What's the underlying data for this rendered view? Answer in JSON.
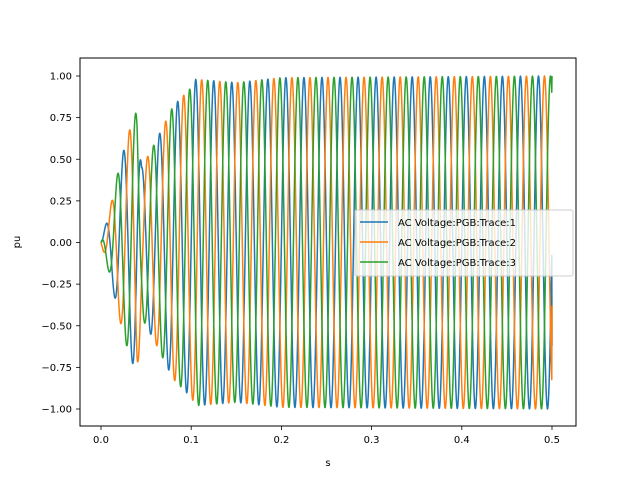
{
  "chart_data": {
    "type": "line",
    "title": "",
    "xlabel": "s",
    "ylabel": "pu",
    "xlim": [
      -0.025,
      0.525
    ],
    "ylim": [
      -1.1,
      1.1
    ],
    "grid": false,
    "legend_position": "center right",
    "x_ticks": [
      0.0,
      0.1,
      0.2,
      0.3,
      0.4,
      0.5
    ],
    "x_tick_labels": [
      "0.0",
      "0.1",
      "0.2",
      "0.3",
      "0.4",
      "0.5"
    ],
    "y_ticks": [
      1.0,
      0.75,
      0.5,
      0.25,
      0.0,
      -0.25,
      -0.5,
      -0.75,
      -1.0
    ],
    "y_tick_labels": [
      "1.00",
      "0.75",
      "0.50",
      "0.25",
      "0.00",
      "−0.25",
      "−0.50",
      "−0.75",
      "−1.00"
    ],
    "signal": {
      "frequency_hz": 50,
      "t_start": 0.0,
      "t_end": 0.5,
      "steady_state_amplitude": 1.0,
      "envelope_points": [
        [
          0.0,
          0.0
        ],
        [
          0.01,
          0.2
        ],
        [
          0.02,
          0.45
        ],
        [
          0.03,
          0.65
        ],
        [
          0.04,
          0.8
        ],
        [
          0.045,
          0.45
        ],
        [
          0.06,
          0.6
        ],
        [
          0.08,
          0.82
        ],
        [
          0.1,
          0.93
        ],
        [
          0.105,
          0.98
        ],
        [
          0.15,
          0.96
        ],
        [
          0.2,
          0.99
        ],
        [
          0.5,
          1.0
        ]
      ]
    },
    "series": [
      {
        "name": "AC Voltage:PGB:Trace:1",
        "color": "#1f77b4",
        "phase_deg": 0,
        "final_value": -0.62
      },
      {
        "name": "AC Voltage:PGB:Trace:2",
        "color": "#ff7f0e",
        "phase_deg": -120,
        "final_value": -0.38
      },
      {
        "name": "AC Voltage:PGB:Trace:3",
        "color": "#2ca02c",
        "phase_deg": 120,
        "final_value": 1.0
      }
    ]
  },
  "legend": {
    "items": [
      {
        "label": "AC Voltage:PGB:Trace:1",
        "color": "#1f77b4"
      },
      {
        "label": "AC Voltage:PGB:Trace:2",
        "color": "#ff7f0e"
      },
      {
        "label": "AC Voltage:PGB:Trace:3",
        "color": "#2ca02c"
      }
    ]
  },
  "axes": {
    "xlabel": "s",
    "ylabel": "pu"
  }
}
